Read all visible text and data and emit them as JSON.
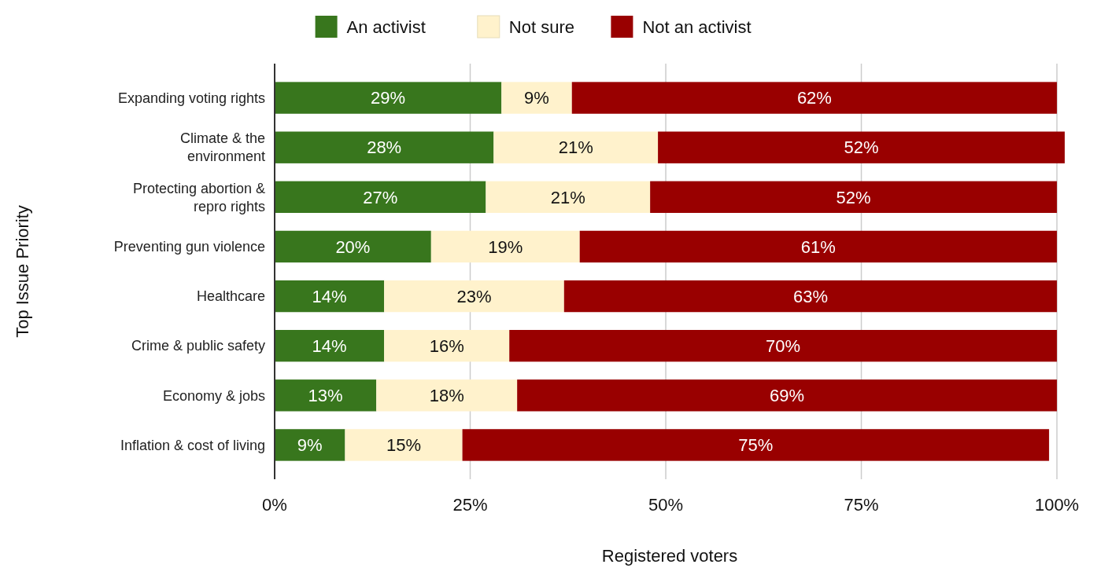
{
  "chart_data": {
    "type": "bar",
    "orientation": "horizontal",
    "stacked": true,
    "ylabel": "Top Issue Priority",
    "xlabel": "Registered voters",
    "categories": [
      "Expanding voting rights",
      "Climate & the\nenvironment",
      "Protecting abortion &\nrepro rights",
      "Preventing gun violence",
      "Healthcare",
      "Crime & public safety",
      "Economy & jobs",
      "Inflation & cost of living"
    ],
    "series": [
      {
        "name": "An activist",
        "color": "#38761d",
        "values": [
          29,
          28,
          27,
          20,
          14,
          14,
          13,
          9
        ],
        "value_labels": [
          "29%",
          "28%",
          "27%",
          "20%",
          "14%",
          "14%",
          "13%",
          "9%"
        ]
      },
      {
        "name": "Not sure",
        "color": "#fff2cc",
        "values": [
          9,
          21,
          21,
          19,
          23,
          16,
          18,
          15
        ],
        "value_labels": [
          "9%",
          "21%",
          "21%",
          "19%",
          "23%",
          "16%",
          "18%",
          "15%"
        ]
      },
      {
        "name": "Not an activist",
        "color": "#990000",
        "values": [
          62,
          52,
          52,
          61,
          63,
          70,
          69,
          75
        ],
        "value_labels": [
          "62%",
          "52%",
          "52%",
          "61%",
          "63%",
          "70%",
          "69%",
          "75%"
        ]
      }
    ],
    "xlim": [
      0,
      101
    ],
    "xticks": [
      {
        "value": 0,
        "label": "0%"
      },
      {
        "value": 25,
        "label": "25%"
      },
      {
        "value": 50,
        "label": "50%"
      },
      {
        "value": 75,
        "label": "75%"
      },
      {
        "value": 100,
        "label": "100%"
      }
    ],
    "grid": "x",
    "legend": "top"
  }
}
